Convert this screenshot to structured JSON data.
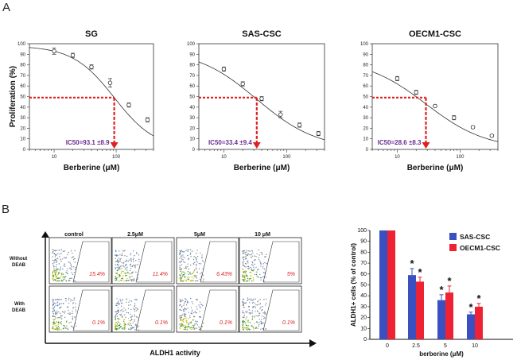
{
  "labels": {
    "panel_a": "A",
    "panel_b": "B"
  },
  "colors": {
    "red_dash": "#e02020",
    "ic_text": "#6a2c91",
    "sas": "#3a4fc0",
    "oecm": "#ee2233",
    "pct_text": "#d22222"
  },
  "chart_data": [
    {
      "type": "line",
      "title": "SG",
      "xlabel": "Berberine (μM)",
      "ylabel": "Proliferation (%)",
      "xscale": "log",
      "xlim": [
        4,
        400
      ],
      "ylim": [
        0,
        100
      ],
      "xtick_labels": [
        "10",
        "100"
      ],
      "ytick_labels": [
        "0",
        "10",
        "20",
        "30",
        "40",
        "50",
        "60",
        "70",
        "80",
        "90",
        "100"
      ],
      "x": [
        10,
        20,
        40,
        80,
        160,
        320
      ],
      "y": [
        93,
        89,
        78,
        63,
        42,
        28
      ],
      "err": [
        3,
        2,
        2,
        4,
        2,
        2
      ],
      "curve": {
        "top": 98,
        "ic50": 93.1,
        "hill": 1.3
      },
      "ic50_label": "IC50=93.1 ±8.9",
      "ic50": 93.1,
      "ic50_level": 49
    },
    {
      "type": "line",
      "title": "SAS-CSC",
      "xlabel": "Berberine (μM)",
      "ylabel": "",
      "xscale": "log",
      "xlim": [
        4,
        400
      ],
      "ylim": [
        0,
        100
      ],
      "xtick_labels": [
        "10",
        "100"
      ],
      "ytick_labels": [
        "0",
        "10",
        "20",
        "30",
        "40",
        "50",
        "60",
        "70",
        "80",
        "90",
        "100"
      ],
      "x": [
        10,
        20,
        40,
        80,
        160,
        320
      ],
      "y": [
        76,
        62,
        48,
        33,
        23,
        15
      ],
      "err": [
        2,
        2,
        2,
        3,
        2,
        2
      ],
      "curve": {
        "top": 95,
        "ic50": 33.4,
        "hill": 0.9
      },
      "ic50_label": "IC50=33.4 ±9.4",
      "ic50": 33.4,
      "ic50_level": 49
    },
    {
      "type": "line",
      "title": "OECM1-CSC",
      "xlabel": "Berberine (μM)",
      "ylabel": "",
      "xscale": "log",
      "xlim": [
        4,
        400
      ],
      "ylim": [
        0,
        100
      ],
      "xtick_labels": [
        "10",
        "100"
      ],
      "ytick_labels": [
        "0",
        "10",
        "20",
        "30",
        "40",
        "50",
        "60",
        "70",
        "80",
        "90",
        "100"
      ],
      "x": [
        10,
        20,
        40,
        80,
        160,
        320
      ],
      "y": [
        67,
        54,
        41,
        30,
        21,
        13
      ],
      "err": [
        2,
        2,
        1,
        2,
        1,
        1
      ],
      "curve": {
        "top": 86,
        "ic50": 28.6,
        "hill": 0.9
      },
      "ic50_label": "IC50=28.6 ±8.3",
      "ic50": 28.6,
      "ic50_level": 49
    },
    {
      "type": "bar",
      "title": "",
      "xlabel": "berberine (μM)",
      "ylabel": "ALDH1+ cells (% of control)",
      "categories": [
        "0",
        "2.5",
        "5",
        "10"
      ],
      "ylim": [
        0,
        100
      ],
      "ytick_labels": [
        "0",
        "10",
        "20",
        "30",
        "40",
        "50",
        "60",
        "70",
        "80",
        "90",
        "100"
      ],
      "series": [
        {
          "name": "SAS-CSC",
          "values": [
            100,
            59,
            36,
            23
          ],
          "err": [
            0,
            6,
            5,
            2
          ],
          "star": [
            false,
            true,
            true,
            true
          ]
        },
        {
          "name": "OECM1-CSC",
          "values": [
            100,
            53,
            43,
            30
          ],
          "err": [
            0,
            4,
            6,
            3
          ],
          "star": [
            false,
            true,
            true,
            true
          ]
        }
      ],
      "star_label": "*"
    }
  ],
  "flow": {
    "columns": [
      "control",
      "2.5μM",
      "5μM",
      "10 μM"
    ],
    "rows": [
      {
        "label_1": "Without",
        "label_2": "DEAB",
        "values": [
          "15.4%",
          "11.4%",
          "6.43%",
          "5%"
        ]
      },
      {
        "label_1": "With",
        "label_2": "DEAB",
        "values": [
          "0.1%",
          "0.1%",
          "0.1%",
          "0.1%"
        ]
      }
    ],
    "xlabel": "ALDH1 activity"
  }
}
